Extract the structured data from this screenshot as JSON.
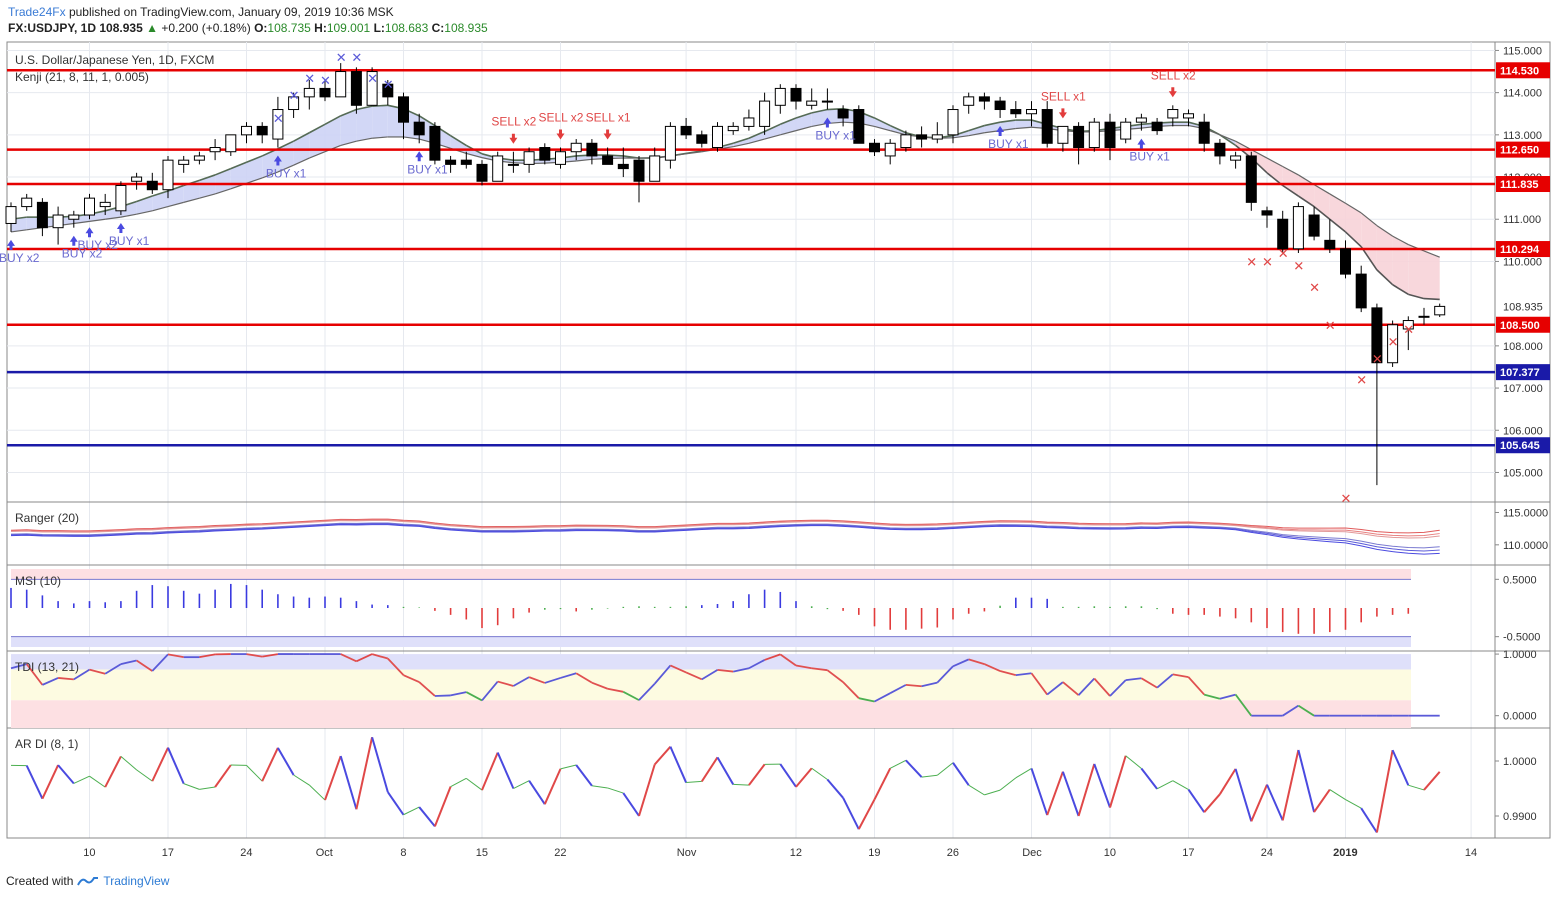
{
  "header": {
    "brand": "Trade24Fx",
    "published": "published on TradingView.com, January 09, 2019 10:36 MSK",
    "symbol_line": "FX:USDJPY, 1D  108.935",
    "change": "+0.200 (+0.18%)",
    "o_label": "O:",
    "o_value": "108.735",
    "h_label": "H:",
    "h_value": "109.001",
    "l_label": "L:",
    "l_value": "108.683",
    "c_label": "C:",
    "c_value": "108.935"
  },
  "footer": {
    "created_with": "Created with",
    "tradingview": "TradingView"
  },
  "colors": {
    "red_level": "#e60000",
    "blue_level": "#1a1aa8",
    "bull": "#ffffff",
    "bear": "#000000",
    "buy": "#4a4ae0",
    "sell": "#e23c3c",
    "cloud_up": "#cdd3f5",
    "cloud_down": "#f7d3d8"
  },
  "chart_data": [
    {
      "type": "candlestick",
      "title": "U.S. Dollar/Japanese Yen, 1D, FXCM",
      "indicator": "Kenji (21, 8, 11, 1, 0.005)",
      "ylim": [
        104.3,
        115.2
      ],
      "yticks": [
        "115.000",
        "114.000",
        "113.000",
        "112.000",
        "111.000",
        "110.000",
        "108.000",
        "107.000",
        "106.000",
        "105.000"
      ],
      "xtick_labels": [
        {
          "label": "10",
          "i": 5
        },
        {
          "label": "17",
          "i": 10
        },
        {
          "label": "24",
          "i": 15
        },
        {
          "label": "Oct",
          "i": 20
        },
        {
          "label": "8",
          "i": 25
        },
        {
          "label": "15",
          "i": 30
        },
        {
          "label": "22",
          "i": 35
        },
        {
          "label": "Nov",
          "i": 43
        },
        {
          "label": "12",
          "i": 50
        },
        {
          "label": "19",
          "i": 55
        },
        {
          "label": "26",
          "i": 60
        },
        {
          "label": "Dec",
          "i": 65
        },
        {
          "label": "10",
          "i": 70
        },
        {
          "label": "17",
          "i": 75
        },
        {
          "label": "24",
          "i": 80
        },
        {
          "label": "2019",
          "i": 85
        },
        {
          "label": "14",
          "i": 93
        }
      ],
      "levels": [
        {
          "value": 114.53,
          "label": "114.530",
          "color": "red"
        },
        {
          "value": 112.65,
          "label": "112.650",
          "color": "red"
        },
        {
          "value": 111.835,
          "label": "111.835",
          "color": "red"
        },
        {
          "value": 110.294,
          "label": "110.294",
          "color": "red"
        },
        {
          "value": 108.5,
          "label": "108.500",
          "color": "red"
        },
        {
          "value": 107.377,
          "label": "107.377",
          "color": "blue"
        },
        {
          "value": 105.645,
          "label": "105.645",
          "color": "blue"
        }
      ],
      "last_price": {
        "value": 108.935,
        "label": "108.935"
      },
      "candles": [
        [
          110.9,
          111.4,
          110.7,
          111.3
        ],
        [
          111.3,
          111.6,
          111.2,
          111.5
        ],
        [
          111.4,
          111.5,
          110.6,
          110.8
        ],
        [
          110.8,
          111.3,
          110.4,
          111.1
        ],
        [
          111.0,
          111.2,
          110.8,
          111.1
        ],
        [
          111.1,
          111.6,
          111.0,
          111.5
        ],
        [
          111.3,
          111.6,
          111.1,
          111.4
        ],
        [
          111.2,
          111.9,
          111.1,
          111.8
        ],
        [
          111.9,
          112.1,
          111.7,
          112.0
        ],
        [
          111.9,
          112.1,
          111.6,
          111.7
        ],
        [
          111.7,
          112.5,
          111.5,
          112.4
        ],
        [
          112.3,
          112.5,
          112.1,
          112.4
        ],
        [
          112.4,
          112.6,
          112.3,
          112.5
        ],
        [
          112.6,
          112.9,
          112.4,
          112.7
        ],
        [
          112.6,
          113.0,
          112.5,
          113.0
        ],
        [
          113.0,
          113.3,
          112.8,
          113.2
        ],
        [
          113.2,
          113.3,
          112.8,
          113.0
        ],
        [
          112.9,
          113.9,
          112.7,
          113.6
        ],
        [
          113.6,
          114.0,
          113.4,
          113.9
        ],
        [
          113.9,
          114.3,
          113.6,
          114.1
        ],
        [
          114.1,
          114.3,
          113.8,
          113.9
        ],
        [
          113.9,
          114.7,
          113.9,
          114.5
        ],
        [
          114.5,
          114.6,
          113.5,
          113.7
        ],
        [
          113.7,
          114.6,
          113.7,
          114.5
        ],
        [
          114.2,
          114.3,
          113.7,
          113.9
        ],
        [
          113.9,
          114.0,
          112.9,
          113.3
        ],
        [
          113.3,
          113.5,
          112.8,
          113.0
        ],
        [
          113.2,
          113.3,
          112.3,
          112.4
        ],
        [
          112.4,
          112.5,
          112.1,
          112.3
        ],
        [
          112.4,
          112.6,
          112.2,
          112.3
        ],
        [
          112.3,
          112.4,
          111.8,
          111.9
        ],
        [
          111.9,
          112.6,
          111.9,
          112.5
        ],
        [
          112.3,
          112.6,
          112.1,
          112.3
        ],
        [
          112.3,
          112.7,
          112.1,
          112.6
        ],
        [
          112.7,
          112.8,
          112.3,
          112.4
        ],
        [
          112.3,
          112.7,
          112.2,
          112.6
        ],
        [
          112.6,
          112.9,
          112.4,
          112.8
        ],
        [
          112.8,
          112.9,
          112.3,
          112.5
        ],
        [
          112.5,
          112.7,
          112.3,
          112.3
        ],
        [
          112.3,
          112.7,
          112.0,
          112.2
        ],
        [
          112.4,
          112.5,
          111.4,
          111.9
        ],
        [
          111.9,
          112.7,
          111.9,
          112.5
        ],
        [
          112.4,
          113.3,
          112.2,
          113.2
        ],
        [
          113.2,
          113.4,
          112.9,
          113.0
        ],
        [
          113.0,
          113.1,
          112.7,
          112.8
        ],
        [
          112.7,
          113.3,
          112.6,
          113.2
        ],
        [
          113.1,
          113.3,
          113.0,
          113.2
        ],
        [
          113.2,
          113.6,
          113.1,
          113.4
        ],
        [
          113.2,
          114.0,
          113.0,
          113.8
        ],
        [
          113.7,
          114.2,
          113.5,
          114.1
        ],
        [
          114.1,
          114.2,
          113.6,
          113.8
        ],
        [
          113.7,
          114.1,
          113.6,
          113.8
        ],
        [
          113.8,
          114.1,
          113.6,
          113.8
        ],
        [
          113.6,
          113.7,
          113.2,
          113.4
        ],
        [
          113.6,
          113.7,
          112.8,
          112.8
        ],
        [
          112.8,
          112.9,
          112.5,
          112.6
        ],
        [
          112.5,
          112.9,
          112.3,
          112.8
        ],
        [
          112.7,
          113.1,
          112.6,
          113.0
        ],
        [
          113.0,
          113.2,
          112.7,
          112.9
        ],
        [
          112.9,
          113.3,
          112.8,
          113.0
        ],
        [
          113.0,
          113.7,
          112.8,
          113.6
        ],
        [
          113.7,
          114.0,
          113.5,
          113.9
        ],
        [
          113.9,
          114.0,
          113.6,
          113.8
        ],
        [
          113.8,
          113.9,
          113.4,
          113.6
        ],
        [
          113.6,
          113.8,
          113.4,
          113.5
        ],
        [
          113.5,
          113.8,
          113.2,
          113.6
        ],
        [
          113.6,
          113.8,
          112.7,
          112.8
        ],
        [
          112.8,
          113.2,
          112.6,
          113.2
        ],
        [
          113.2,
          113.3,
          112.3,
          112.7
        ],
        [
          112.7,
          113.4,
          112.6,
          113.3
        ],
        [
          113.3,
          113.5,
          112.4,
          112.7
        ],
        [
          112.9,
          113.4,
          112.8,
          113.3
        ],
        [
          113.3,
          113.5,
          113.1,
          113.4
        ],
        [
          113.3,
          113.4,
          113.0,
          113.1
        ],
        [
          113.4,
          113.7,
          113.2,
          113.6
        ],
        [
          113.4,
          113.6,
          113.2,
          113.5
        ],
        [
          113.3,
          113.5,
          112.6,
          112.8
        ],
        [
          112.8,
          112.9,
          112.3,
          112.5
        ],
        [
          112.4,
          112.6,
          112.2,
          112.5
        ],
        [
          112.5,
          112.6,
          111.2,
          111.4
        ],
        [
          111.2,
          111.3,
          110.8,
          111.1
        ],
        [
          111.0,
          111.2,
          110.2,
          110.3
        ],
        [
          110.3,
          111.4,
          110.2,
          111.3
        ],
        [
          111.1,
          111.3,
          110.5,
          110.6
        ],
        [
          110.5,
          111.0,
          110.2,
          110.3
        ],
        [
          110.3,
          110.5,
          109.6,
          109.7
        ],
        [
          109.7,
          109.9,
          108.8,
          108.9
        ],
        [
          108.9,
          109.0,
          104.7,
          107.6
        ],
        [
          107.6,
          108.6,
          107.5,
          108.5
        ],
        [
          108.4,
          108.7,
          107.9,
          108.6
        ],
        [
          108.7,
          108.9,
          108.5,
          108.7
        ],
        [
          108.735,
          109.001,
          108.683,
          108.935
        ]
      ],
      "kenji_line_a": [
        111.0,
        111.05,
        111.05,
        111.05,
        111.07,
        111.12,
        111.2,
        111.3,
        111.42,
        111.55,
        111.67,
        111.8,
        111.92,
        112.05,
        112.2,
        112.35,
        112.5,
        112.67,
        112.85,
        113.05,
        113.25,
        113.45,
        113.6,
        113.68,
        113.7,
        113.62,
        113.45,
        113.22,
        112.98,
        112.75,
        112.55,
        112.45,
        112.4,
        112.4,
        112.42,
        112.45,
        112.5,
        112.52,
        112.52,
        112.5,
        112.45,
        112.45,
        112.5,
        112.56,
        112.62,
        112.7,
        112.8,
        112.92,
        113.08,
        113.25,
        113.4,
        113.52,
        113.6,
        113.62,
        113.55,
        113.4,
        113.22,
        113.05,
        112.95,
        112.93,
        112.98,
        113.1,
        113.22,
        113.3,
        113.35,
        113.35,
        113.25,
        113.15,
        113.08,
        113.1,
        113.15,
        113.2,
        113.25,
        113.28,
        113.3,
        113.3,
        113.2,
        113.0,
        112.75,
        112.45,
        112.1,
        111.8,
        111.55,
        111.3,
        111.0,
        110.7,
        110.35,
        109.8,
        109.45,
        109.22,
        109.12,
        109.1
      ],
      "kenji_line_b": [
        110.7,
        110.75,
        110.8,
        110.85,
        110.9,
        110.95,
        111.0,
        111.05,
        111.12,
        111.2,
        111.3,
        111.4,
        111.5,
        111.6,
        111.72,
        111.85,
        111.98,
        112.12,
        112.28,
        112.45,
        112.6,
        112.75,
        112.85,
        112.92,
        112.95,
        112.95,
        112.9,
        112.8,
        112.68,
        112.56,
        112.46,
        112.38,
        112.34,
        112.32,
        112.33,
        112.35,
        112.38,
        112.42,
        112.44,
        112.45,
        112.45,
        112.46,
        112.5,
        112.55,
        112.6,
        112.66,
        112.72,
        112.8,
        112.9,
        113.0,
        113.1,
        113.2,
        113.27,
        113.3,
        113.28,
        113.2,
        113.1,
        113.0,
        112.95,
        112.92,
        112.93,
        112.98,
        113.05,
        113.1,
        113.15,
        113.18,
        113.15,
        113.1,
        113.07,
        113.07,
        113.1,
        113.13,
        113.16,
        113.2,
        113.22,
        113.22,
        113.15,
        113.0,
        112.85,
        112.65,
        112.45,
        112.25,
        112.05,
        111.82,
        111.6,
        111.38,
        111.15,
        110.85,
        110.6,
        110.4,
        110.25,
        110.1
      ],
      "signals": [
        {
          "i": 0,
          "type": "buy",
          "label": "BUY x2"
        },
        {
          "i": 4,
          "type": "buy",
          "label": "BUY x2"
        },
        {
          "i": 5,
          "type": "buy",
          "label": "BUY x2"
        },
        {
          "i": 7,
          "type": "buy",
          "label": "BUY x1"
        },
        {
          "i": 17,
          "type": "buy",
          "label": "BUY x1"
        },
        {
          "i": 26,
          "type": "buy",
          "label": "BUY x1"
        },
        {
          "i": 32,
          "type": "sell",
          "label": "SELL x2"
        },
        {
          "i": 35,
          "type": "sell",
          "label": "SELL x2"
        },
        {
          "i": 38,
          "type": "sell",
          "label": "SELL x1"
        },
        {
          "i": 52,
          "type": "buy",
          "label": "BUY x1"
        },
        {
          "i": 63,
          "type": "buy",
          "label": "BUY x1"
        },
        {
          "i": 67,
          "type": "sell",
          "label": "SELL x1"
        },
        {
          "i": 72,
          "type": "buy",
          "label": "BUY x1"
        },
        {
          "i": 74,
          "type": "sell",
          "label": "SELL x2"
        }
      ],
      "x_markers": [
        {
          "i": 17,
          "type": "buy",
          "value": 113.4
        },
        {
          "i": 18,
          "type": "buy",
          "value": 113.95
        },
        {
          "i": 19,
          "type": "buy",
          "value": 114.35
        },
        {
          "i": 20,
          "type": "buy",
          "value": 114.3
        },
        {
          "i": 21,
          "type": "buy",
          "value": 114.85
        },
        {
          "i": 22,
          "type": "buy",
          "value": 114.85
        },
        {
          "i": 23,
          "type": "buy",
          "value": 114.35
        },
        {
          "i": 24,
          "type": "buy",
          "value": 114.2
        },
        {
          "i": 79,
          "type": "sell",
          "value": 110.0
        },
        {
          "i": 80,
          "type": "sell",
          "value": 110.0
        },
        {
          "i": 81,
          "type": "sell",
          "value": 110.2
        },
        {
          "i": 82,
          "type": "sell",
          "value": 109.9
        },
        {
          "i": 83,
          "type": "sell",
          "value": 109.4
        },
        {
          "i": 84,
          "type": "sell",
          "value": 108.5
        },
        {
          "i": 85,
          "type": "sell",
          "value": 104.4
        },
        {
          "i": 86,
          "type": "sell",
          "value": 107.2
        },
        {
          "i": 87,
          "type": "sell",
          "value": 107.7
        },
        {
          "i": 88,
          "type": "sell",
          "value": 108.1
        },
        {
          "i": 89,
          "type": "sell",
          "value": 108.4
        }
      ]
    },
    {
      "type": "line",
      "title": "Ranger (20)",
      "yticks": [
        "115.0000",
        "110.0000"
      ],
      "description_series": "upper red bands and lower blue bands around price"
    },
    {
      "type": "bar",
      "title": "MSI (10)",
      "yticks": [
        "0.5000",
        "-0.5000"
      ],
      "values": [
        0.35,
        0.32,
        0.22,
        0.12,
        0.08,
        0.12,
        0.1,
        0.12,
        0.3,
        0.4,
        0.38,
        0.3,
        0.25,
        0.32,
        0.42,
        0.4,
        0.32,
        0.24,
        0.2,
        0.18,
        0.2,
        0.18,
        0.12,
        0.06,
        0.05,
        0.02,
        0.01,
        -0.05,
        -0.12,
        -0.2,
        -0.35,
        -0.3,
        -0.18,
        -0.08,
        -0.03,
        -0.02,
        -0.06,
        -0.03,
        -0.01,
        0.02,
        0.03,
        0.02,
        0.02,
        0.03,
        0.05,
        0.07,
        0.12,
        0.24,
        0.32,
        0.28,
        0.12,
        0.03,
        -0.02,
        -0.05,
        -0.12,
        -0.32,
        -0.38,
        -0.38,
        -0.36,
        -0.34,
        -0.2,
        -0.1,
        -0.06,
        0.04,
        0.18,
        0.18,
        0.16,
        0.02,
        0.02,
        0.03,
        0.02,
        0.03,
        0.03,
        -0.02,
        -0.1,
        -0.12,
        -0.12,
        -0.15,
        -0.18,
        -0.25,
        -0.35,
        -0.42,
        -0.45,
        -0.45,
        -0.42,
        -0.38,
        -0.25,
        -0.15,
        -0.12,
        -0.1
      ],
      "ylim": [
        -0.75,
        0.75
      ]
    },
    {
      "type": "line",
      "title": "TDI (13, 21)",
      "yticks": [
        "1.0000",
        "0.0000"
      ],
      "ylim": [
        -0.2,
        1.05
      ]
    },
    {
      "type": "line",
      "title": "AR DI (8, 1)",
      "yticks": [
        "1.0000",
        "0.9900"
      ],
      "ylim": [
        0.986,
        1.006
      ]
    }
  ]
}
